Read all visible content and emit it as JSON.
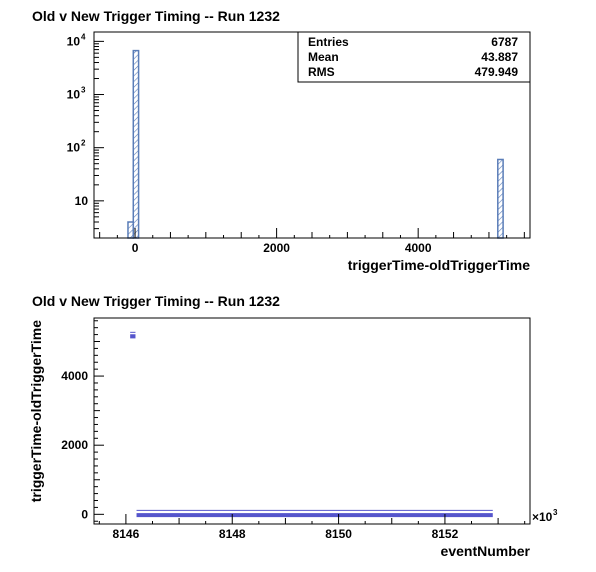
{
  "chart_data": [
    {
      "type": "histogram",
      "title": "Old v New Trigger Timing -- Run 1232",
      "xlabel": "triggerTime-oldTriggerTime",
      "ylabel": "",
      "xlim": [
        -580,
        5580
      ],
      "ylim": [
        2,
        15000
      ],
      "y_scale": "log",
      "x_ticks": [
        {
          "value": 0,
          "label": "0"
        },
        {
          "value": 2000,
          "label": "2000"
        },
        {
          "value": 4000,
          "label": "4000"
        }
      ],
      "y_ticks": [
        {
          "value": 10,
          "label": "10",
          "base": "",
          "exp": ""
        },
        {
          "value": 100,
          "label": "",
          "base": "10",
          "exp": "2"
        },
        {
          "value": 1000,
          "label": "",
          "base": "10",
          "exp": "3"
        },
        {
          "value": 10000,
          "label": "",
          "base": "10",
          "exp": "4"
        }
      ],
      "bins": [
        {
          "low": -100,
          "high": -25,
          "count": 4
        },
        {
          "low": -25,
          "high": 50,
          "count": 6700
        },
        {
          "low": 5125,
          "high": 5200,
          "count": 60
        }
      ],
      "line_color": "#5a7db8",
      "fill_color": "#5a7db8",
      "stats": {
        "rows": [
          {
            "label": "Entries",
            "value": "6787"
          },
          {
            "label": "Mean",
            "value": "43.887"
          },
          {
            "label": "RMS",
            "value": "479.949"
          }
        ]
      }
    },
    {
      "type": "scatter",
      "title": "Old v New Trigger Timing -- Run 1232",
      "xlabel": "eventNumber",
      "ylabel": "triggerTime-oldTriggerTime",
      "x_multiplier_label": "×10",
      "x_multiplier_exp": "3",
      "xlim": [
        8145.4,
        8153.6
      ],
      "ylim": [
        -280,
        5680
      ],
      "x_ticks": [
        {
          "value": 8146,
          "label": "8146"
        },
        {
          "value": 8148,
          "label": "8148"
        },
        {
          "value": 8150,
          "label": "8150"
        },
        {
          "value": 8152,
          "label": "8152"
        }
      ],
      "y_ticks": [
        {
          "value": 0,
          "label": "0"
        },
        {
          "value": 2000,
          "label": "2000"
        },
        {
          "value": 4000,
          "label": "4000"
        }
      ],
      "marker_color": "#5555cc",
      "clusters": [
        {
          "x_start": 8146.08,
          "x_end": 8146.18,
          "y": 5150,
          "spread": 60
        },
        {
          "x_start": 8146.2,
          "x_end": 8152.9,
          "y": 0,
          "spread": 35
        }
      ]
    }
  ]
}
